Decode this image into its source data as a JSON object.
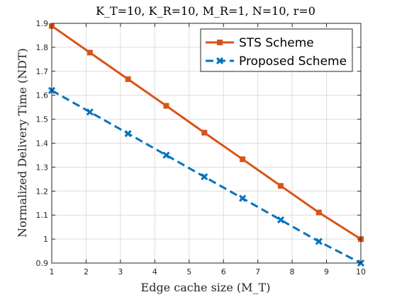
{
  "chart_data": {
    "type": "line",
    "title": "K_T=10, K_R=10, M_R=1, N=10, r=0",
    "xlabel": "Edge cache size (M_T)",
    "ylabel": "Normalized Delivery Time (NDT)",
    "xlim": [
      1,
      10
    ],
    "ylim": [
      0.9,
      1.9
    ],
    "xticks": [
      1,
      2,
      3,
      4,
      5,
      6,
      7,
      8,
      9,
      10
    ],
    "yticks": [
      0.9,
      1,
      1.1,
      1.2,
      1.3,
      1.4,
      1.5,
      1.6,
      1.7,
      1.8,
      1.9
    ],
    "grid": true,
    "legend_position": "top-right",
    "series": [
      {
        "name": "STS Scheme",
        "color": "#D95319",
        "line_style": "solid",
        "marker": "square",
        "x": [
          1,
          2.111,
          3.222,
          4.333,
          5.444,
          6.556,
          7.667,
          8.778,
          10
        ],
        "y": [
          1.889,
          1.778,
          1.667,
          1.556,
          1.444,
          1.333,
          1.222,
          1.111,
          1.0
        ]
      },
      {
        "name": "Proposed Scheme",
        "color": "#0072BD",
        "line_style": "dashed",
        "marker": "x",
        "x": [
          1,
          2.111,
          3.222,
          4.333,
          5.444,
          6.556,
          7.667,
          8.778,
          10
        ],
        "y": [
          1.62,
          1.53,
          1.44,
          1.35,
          1.26,
          1.17,
          1.08,
          0.99,
          0.9
        ]
      }
    ]
  }
}
